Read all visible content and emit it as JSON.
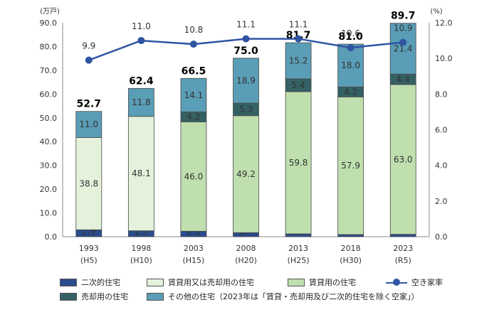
{
  "chart_data": {
    "type": "bar",
    "stacked": true,
    "categories": [
      "1993",
      "1998",
      "2003",
      "2008",
      "2013",
      "2018",
      "2023"
    ],
    "category_sublabels": [
      "(H5)",
      "(H10)",
      "(H15)",
      "(H20)",
      "(H25)",
      "(H30)",
      "(R5)"
    ],
    "series": [
      {
        "name": "二次的住宅",
        "color": "#2B4C8C",
        "values": [
          2.9,
          2.5,
          2.3,
          1.7,
          1.2,
          0.9,
          1.0
        ]
      },
      {
        "name": "賃貸用又は売却用の住宅",
        "color": "#E4F1DB",
        "values": [
          38.8,
          48.1,
          null,
          null,
          null,
          null,
          null
        ]
      },
      {
        "name": "賃貸用の住宅",
        "color": "#BFDFAE",
        "values": [
          null,
          null,
          46.0,
          49.2,
          59.8,
          57.9,
          63.0
        ]
      },
      {
        "name": "売却用の住宅",
        "color": "#356164",
        "values": [
          null,
          null,
          4.2,
          5.3,
          5.4,
          4.2,
          4.4
        ]
      },
      {
        "name": "その他の住宅（2023年は「賃貸・売却用及び二次的住宅を除く空家」）",
        "color": "#5A9DB6",
        "values": [
          11.0,
          11.8,
          14.1,
          18.9,
          15.2,
          18.0,
          21.4
        ]
      }
    ],
    "totals": [
      "52.7",
      "62.4",
      "66.5",
      "75.0",
      "81.7",
      "81.0",
      "89.7"
    ],
    "line_series": {
      "name": "空き家率",
      "color": "#2E54A2",
      "values": [
        9.9,
        11.0,
        10.8,
        11.1,
        11.1,
        10.6,
        10.9
      ],
      "axis": "right"
    },
    "left_axis": {
      "unit": "(万戸)",
      "min": 0,
      "max": 90,
      "step": 10,
      "tick_labels": [
        "0.0",
        "10.0",
        "20.0",
        "30.0",
        "40.0",
        "50.0",
        "60.0",
        "70.0",
        "80.0",
        "90.0"
      ]
    },
    "right_axis": {
      "unit": "(%)",
      "min": 0,
      "max": 12,
      "step": 2,
      "tick_labels": [
        "0.0",
        "2.0",
        "4.0",
        "6.0",
        "8.0",
        "10.0",
        "12.0"
      ]
    },
    "legend_position": "bottom"
  }
}
